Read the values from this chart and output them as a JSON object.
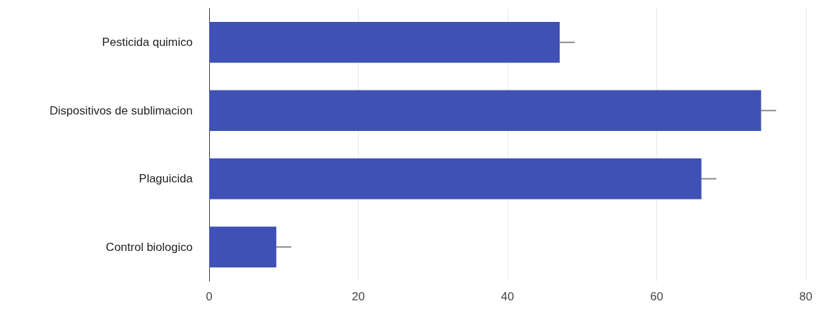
{
  "chart_data": {
    "type": "bar",
    "orientation": "horizontal",
    "categories": [
      "Pesticida quimico",
      "Dispositivos de sublimacion",
      "Plaguicida",
      "Control biologico"
    ],
    "values": [
      47,
      74,
      66,
      9
    ],
    "errors": [
      [
        47,
        49
      ],
      [
        74,
        76
      ],
      [
        66,
        68
      ],
      [
        9,
        11
      ]
    ],
    "color": "#3f51b5",
    "xlim": [
      0,
      80
    ],
    "xticks": [
      0,
      20,
      40,
      60,
      80
    ],
    "grid": "x"
  }
}
